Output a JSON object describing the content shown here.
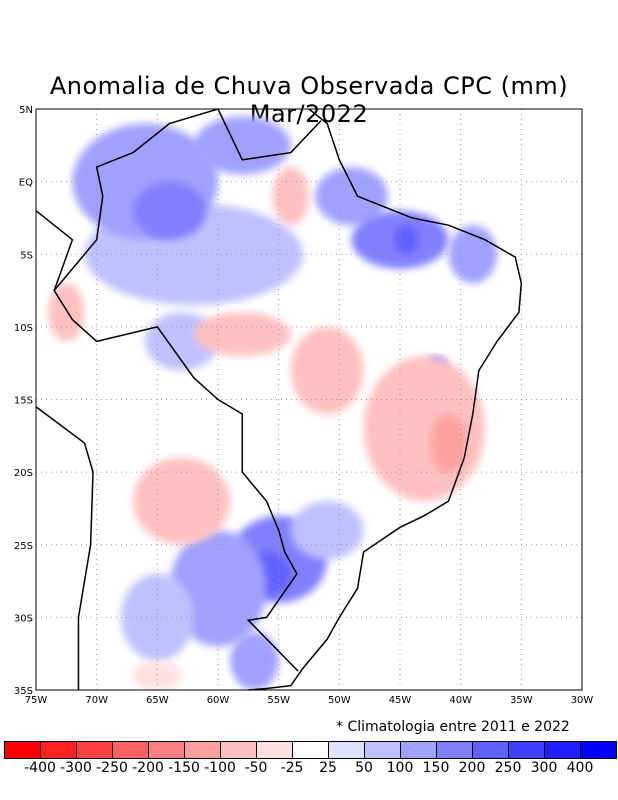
{
  "title": "Anomalia de Chuva Observada CPC (mm) Mar/2022",
  "note": "* Climatologia entre 2011 e 2022",
  "lat_labels": [
    "5N",
    "EQ",
    "5S",
    "10S",
    "15S",
    "20S",
    "25S",
    "30S",
    "35S"
  ],
  "lon_labels": [
    "75W",
    "70W",
    "65W",
    "60W",
    "55W",
    "50W",
    "45W",
    "40W",
    "35W",
    "30W"
  ],
  "colorbar": {
    "labels": [
      "-400",
      "-300",
      "-250",
      "-200",
      "-150",
      "-100",
      "-50",
      "-25",
      "25",
      "50",
      "100",
      "150",
      "200",
      "250",
      "300",
      "400"
    ],
    "colors": [
      "#ff0000",
      "#ff2020",
      "#ff4040",
      "#ff6060",
      "#ff8080",
      "#ffa0a0",
      "#ffc0c0",
      "#ffe0e0",
      "#ffffff",
      "#e0e0ff",
      "#c0c0ff",
      "#a0a0ff",
      "#8080ff",
      "#6060ff",
      "#4040ff",
      "#2020ff",
      "#0000ff"
    ]
  },
  "map_extent": {
    "lon": [
      -75,
      -30
    ],
    "lat": [
      -35,
      5
    ]
  },
  "anomaly_regions": [
    {
      "lon": -62,
      "lat": -5,
      "rlon": 9,
      "rlat": 3.5,
      "value": 50
    },
    {
      "lon": -66,
      "lat": 0,
      "rlon": 6,
      "rlat": 4,
      "value": 100
    },
    {
      "lon": -64,
      "lat": -2,
      "rlon": 3,
      "rlat": 2,
      "value": 150
    },
    {
      "lon": -58,
      "lat": 2.5,
      "rlon": 4,
      "rlat": 2,
      "value": 100
    },
    {
      "lon": -49,
      "lat": -1,
      "rlon": 3,
      "rlat": 2,
      "value": 100
    },
    {
      "lon": -45,
      "lat": -4,
      "rlon": 4,
      "rlat": 2,
      "value": 150
    },
    {
      "lon": -44.5,
      "lat": -4,
      "rlon": 1,
      "rlat": 1,
      "value": 200
    },
    {
      "lon": -39,
      "lat": -5,
      "rlon": 2,
      "rlat": 2,
      "value": 100
    },
    {
      "lon": -42,
      "lat": -13,
      "rlon": 1,
      "rlat": 1,
      "value": 150
    },
    {
      "lon": -63,
      "lat": -11,
      "rlon": 3,
      "rlat": 2,
      "value": 50
    },
    {
      "lon": -55,
      "lat": -26,
      "rlon": 4,
      "rlat": 3,
      "value": 150
    },
    {
      "lon": -56,
      "lat": -27,
      "rlon": 2,
      "rlat": 1.5,
      "value": 200
    },
    {
      "lon": -60,
      "lat": -28,
      "rlon": 4,
      "rlat": 4,
      "value": 100
    },
    {
      "lon": -57,
      "lat": -33,
      "rlon": 2,
      "rlat": 2,
      "value": 100
    },
    {
      "lon": -51,
      "lat": -24,
      "rlon": 3,
      "rlat": 2,
      "value": 50
    },
    {
      "lon": -65,
      "lat": -30,
      "rlon": 3,
      "rlat": 3,
      "value": 50
    },
    {
      "lon": -58,
      "lat": -10.5,
      "rlon": 4,
      "rlat": 1.5,
      "value": -100
    },
    {
      "lon": -51,
      "lat": -13,
      "rlon": 3,
      "rlat": 3,
      "value": -100
    },
    {
      "lon": -43,
      "lat": -17,
      "rlon": 5,
      "rlat": 5,
      "value": -100
    },
    {
      "lon": -41,
      "lat": -18,
      "rlon": 1.5,
      "rlat": 2,
      "value": -150
    },
    {
      "lon": -63,
      "lat": -22,
      "rlon": 4,
      "rlat": 3,
      "value": -100
    },
    {
      "lon": -72.5,
      "lat": -9,
      "rlon": 1.5,
      "rlat": 2,
      "value": -100
    },
    {
      "lon": -65,
      "lat": -34,
      "rlon": 2,
      "rlat": 1,
      "value": -50
    },
    {
      "lon": -54,
      "lat": -1,
      "rlon": 1.5,
      "rlat": 2,
      "value": -100
    }
  ]
}
